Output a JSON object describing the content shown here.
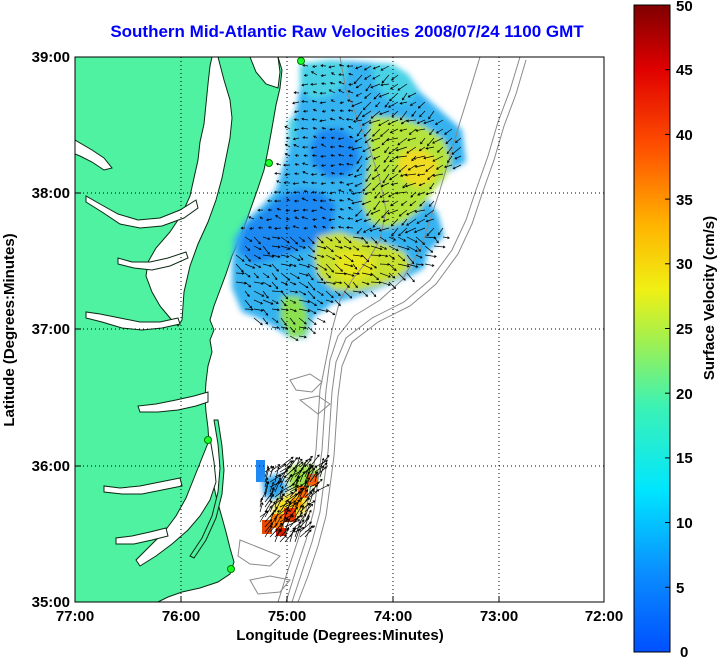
{
  "title": "Southern Mid-Atlantic Raw Velocities 2008/07/24 1100 GMT",
  "map": {
    "xlabel": "Longitude (Degrees:Minutes)",
    "ylabel": "Latitude (Degrees:Minutes)",
    "x_ticks": [
      "77:00",
      "76:00",
      "75:00",
      "74:00",
      "73:00",
      "72:00"
    ],
    "y_ticks": [
      "39:00",
      "38:00",
      "37:00",
      "36:00",
      "35:00"
    ],
    "lon_range": [
      -77,
      -72
    ],
    "lat_range": [
      35,
      39
    ],
    "colors": {
      "land": "#4ef2a0",
      "water": "#ffffff",
      "coast": "#0a2a14",
      "bathymetry": "#8a8a8a",
      "station": "#1aff2a"
    }
  },
  "colorbar": {
    "label": "Surface Velocity (cm/s)",
    "ticks": [
      "50",
      "45",
      "40",
      "35",
      "30",
      "25",
      "20",
      "15",
      "10",
      "5",
      "0"
    ],
    "range": [
      0,
      50
    ],
    "colormap": "jet"
  }
}
